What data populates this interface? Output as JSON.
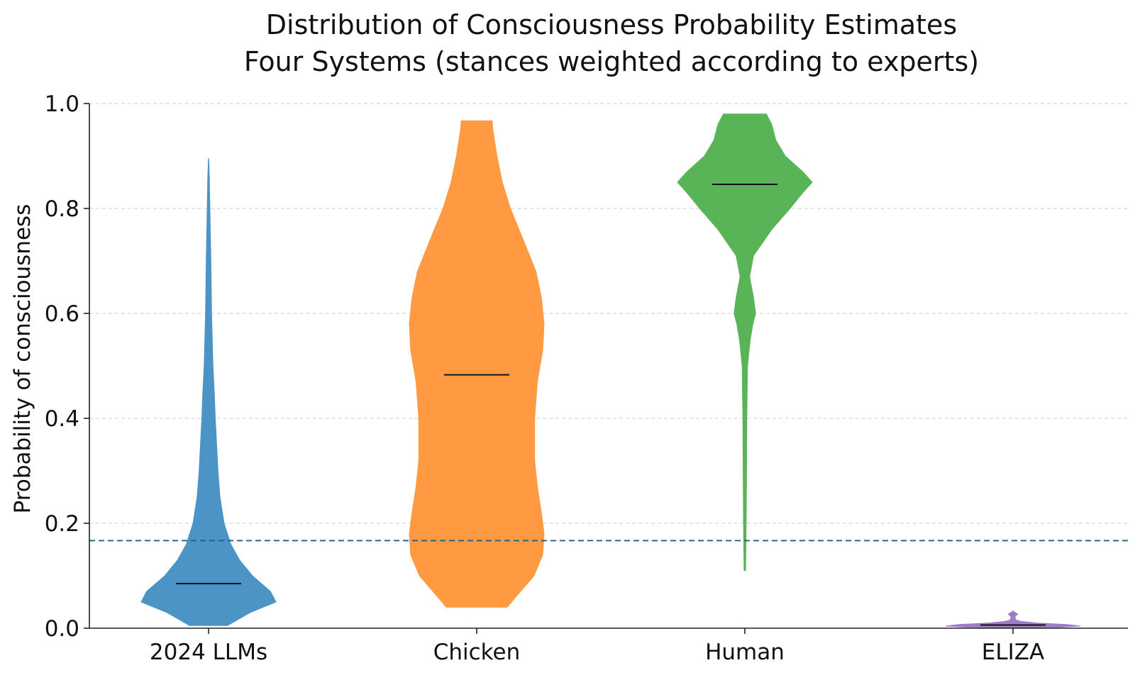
{
  "chart_data": {
    "type": "violin",
    "title": [
      "Distribution of Consciousness Probability Estimates",
      "Four Systems (stances weighted according to experts)"
    ],
    "ylabel": "Probability of consciousness",
    "xlabel": "",
    "ylim": [
      0.0,
      1.0
    ],
    "yticks": [
      "0.0",
      "0.2",
      "0.4",
      "0.6",
      "0.8",
      "1.0"
    ],
    "grid": true,
    "reference_line": {
      "y": 0.167,
      "color": "#1f5f7f",
      "style": "dashed"
    },
    "series": [
      {
        "category": "2024 LLMs",
        "color": "#4c94c5",
        "median": 0.085,
        "density": [
          [
            0.005,
            0.28
          ],
          [
            0.03,
            0.62
          ],
          [
            0.05,
            1.0
          ],
          [
            0.07,
            0.92
          ],
          [
            0.1,
            0.65
          ],
          [
            0.13,
            0.46
          ],
          [
            0.16,
            0.33
          ],
          [
            0.2,
            0.23
          ],
          [
            0.25,
            0.17
          ],
          [
            0.3,
            0.14
          ],
          [
            0.35,
            0.12
          ],
          [
            0.4,
            0.1
          ],
          [
            0.45,
            0.085
          ],
          [
            0.5,
            0.065
          ],
          [
            0.6,
            0.045
          ],
          [
            0.7,
            0.035
          ],
          [
            0.8,
            0.02
          ],
          [
            0.86,
            0.012
          ],
          [
            0.895,
            0.002
          ]
        ]
      },
      {
        "category": "Chicken",
        "color": "#ff9a42",
        "median": 0.483,
        "density": [
          [
            0.04,
            0.45
          ],
          [
            0.07,
            0.65
          ],
          [
            0.1,
            0.85
          ],
          [
            0.14,
            0.98
          ],
          [
            0.18,
            1.0
          ],
          [
            0.22,
            0.96
          ],
          [
            0.27,
            0.9
          ],
          [
            0.32,
            0.86
          ],
          [
            0.4,
            0.86
          ],
          [
            0.47,
            0.9
          ],
          [
            0.53,
            0.98
          ],
          [
            0.58,
            1.0
          ],
          [
            0.63,
            0.96
          ],
          [
            0.68,
            0.88
          ],
          [
            0.75,
            0.66
          ],
          [
            0.8,
            0.5
          ],
          [
            0.85,
            0.38
          ],
          [
            0.9,
            0.3
          ],
          [
            0.95,
            0.24
          ],
          [
            0.967,
            0.23
          ]
        ]
      },
      {
        "category": "Human",
        "color": "#58b457",
        "median": 0.846,
        "density": [
          [
            0.11,
            0.012
          ],
          [
            0.2,
            0.02
          ],
          [
            0.3,
            0.025
          ],
          [
            0.4,
            0.03
          ],
          [
            0.5,
            0.04
          ],
          [
            0.55,
            0.08
          ],
          [
            0.58,
            0.12
          ],
          [
            0.6,
            0.16
          ],
          [
            0.63,
            0.13
          ],
          [
            0.67,
            0.07
          ],
          [
            0.71,
            0.13
          ],
          [
            0.76,
            0.4
          ],
          [
            0.8,
            0.67
          ],
          [
            0.83,
            0.86
          ],
          [
            0.85,
            1.0
          ],
          [
            0.87,
            0.86
          ],
          [
            0.9,
            0.6
          ],
          [
            0.93,
            0.46
          ],
          [
            0.96,
            0.4
          ],
          [
            0.98,
            0.32
          ]
        ]
      },
      {
        "category": "ELIZA",
        "color": "#a07cc7",
        "median": 0.006,
        "density": [
          [
            0.0005,
            0.0
          ],
          [
            0.002,
            0.7
          ],
          [
            0.004,
            1.0
          ],
          [
            0.007,
            0.8
          ],
          [
            0.01,
            0.35
          ],
          [
            0.013,
            0.12
          ],
          [
            0.016,
            0.04
          ],
          [
            0.022,
            0.03
          ],
          [
            0.027,
            0.07
          ],
          [
            0.03,
            0.03
          ],
          [
            0.033,
            0.0
          ]
        ]
      }
    ]
  }
}
